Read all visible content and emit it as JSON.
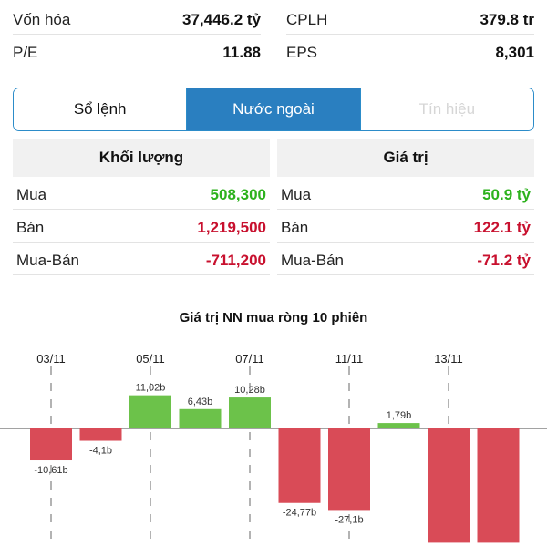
{
  "stats": {
    "row1": [
      {
        "label": "Vốn hóa",
        "value": "37,446.2 tỷ"
      },
      {
        "label": "CPLH",
        "value": "379.8 tr"
      }
    ],
    "row2": [
      {
        "label": "P/E",
        "value": "11.88"
      },
      {
        "label": "EPS",
        "value": "8,301"
      }
    ]
  },
  "tabs": [
    {
      "label": "Sổ lệnh",
      "state": "inactive"
    },
    {
      "label": "Nước ngoài",
      "state": "active"
    },
    {
      "label": "Tín hiệu",
      "state": "faded"
    }
  ],
  "foreign": {
    "volume": {
      "header": "Khối lượng",
      "rows": [
        {
          "label": "Mua",
          "value": "508,300"
        },
        {
          "label": "Bán",
          "value": "1,219,500"
        },
        {
          "label": "Mua-Bán",
          "value": "-711,200"
        }
      ]
    },
    "value": {
      "header": "Giá trị",
      "rows": [
        {
          "label": "Mua",
          "value": "50.9 tỷ"
        },
        {
          "label": "Bán",
          "value": "122.1 tỷ"
        },
        {
          "label": "Mua-Bán",
          "value": "-71.2 tỷ"
        }
      ]
    }
  },
  "colors": {
    "positive": "#6cc24a",
    "negative": "#d94b57",
    "accent": "#2a7fc0",
    "green_text": "#2db21d",
    "red_text": "#c8102e"
  },
  "chart_data": {
    "type": "bar",
    "title": "Giá trị NN mua ròng 10 phiên",
    "x_ticks": [
      "03/11",
      "05/11",
      "07/11",
      "11/11",
      "13/11"
    ],
    "x_tick_bar_index": [
      0,
      2,
      4,
      6,
      8
    ],
    "values": [
      -10.61,
      -4.1,
      11.02,
      6.43,
      10.28,
      -24.77,
      -27.1,
      1.79,
      -38.0,
      -38.0
    ],
    "labels": [
      "-10,61b",
      "-4,1b",
      "11,02b",
      "6,43b",
      "10,28b",
      "-24,77b",
      "-27,1b",
      "1,79b",
      "",
      ""
    ],
    "unit": "b"
  }
}
